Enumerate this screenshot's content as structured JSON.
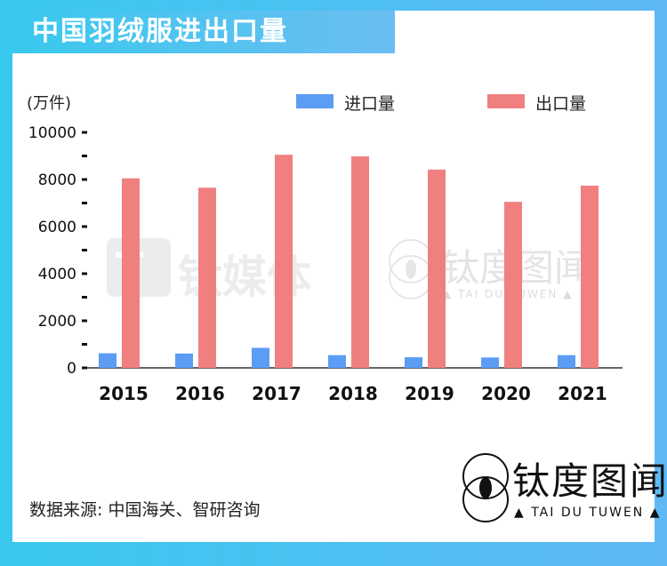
{
  "header": {
    "title": "中国羽绒服进出口量"
  },
  "chart_data": {
    "type": "bar",
    "title": "中国羽绒服进出口量",
    "ylabel": "(万件)",
    "categories": [
      "2015",
      "2016",
      "2017",
      "2018",
      "2019",
      "2020",
      "2021"
    ],
    "series": [
      {
        "name": "进口量",
        "color": "#5b9cf5",
        "values": [
          620,
          610,
          850,
          540,
          450,
          440,
          540
        ]
      },
      {
        "name": "出口量",
        "color": "#f08080",
        "values": [
          8050,
          7650,
          9050,
          8980,
          8420,
          7050,
          7740
        ]
      }
    ],
    "ylim": [
      0,
      10000
    ],
    "yticks": [
      0,
      2000,
      4000,
      6000,
      8000,
      10000
    ],
    "legend_position": "top"
  },
  "source": "数据来源: 中国海关、智研咨询",
  "watermark": {
    "brand1": "钛媒体",
    "brand1_mark": "T",
    "brand2": "钛度图闻",
    "brand2_sub": "▲ TAI DU TUWEN ▲"
  },
  "brand": {
    "name": "钛度图闻",
    "sub": "▲ TAI DU TUWEN ▲"
  }
}
